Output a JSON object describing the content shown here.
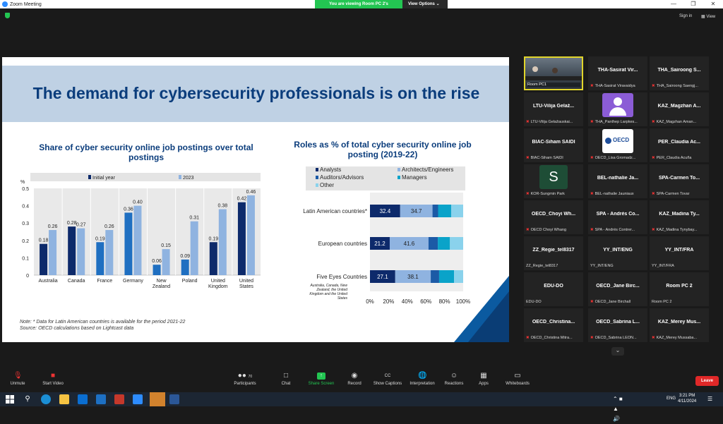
{
  "window": {
    "title": "Zoom Meeting"
  },
  "banner": {
    "viewing": "You are viewing Room PC 2's screen",
    "options": "View Options"
  },
  "topbar": {
    "sign_in": "Sign in",
    "view": "View"
  },
  "slide": {
    "title": "The demand for cybersecurity professionals is on the rise",
    "note": "Note: * Data for Latin American countries is available for the period 2021-22",
    "source": "Source: OECD calculations based on Lightcast data"
  },
  "chart_data": [
    {
      "type": "bar",
      "title": "Share of cyber security online job postings over total postings",
      "ylabel": "%",
      "ylim": [
        0,
        0.5
      ],
      "yticks": [
        "0",
        "0.1",
        "0.2",
        "0.3",
        "0.4",
        "0.5"
      ],
      "categories": [
        "Australia",
        "Canada",
        "France",
        "Germany",
        "New Zealand",
        "Poland",
        "United Kingdom",
        "United States"
      ],
      "category_lines": [
        [
          "Australia"
        ],
        [
          "Canada"
        ],
        [
          "France"
        ],
        [
          "Germany"
        ],
        [
          "New",
          "Zealand"
        ],
        [
          "Poland"
        ],
        [
          "United",
          "Kingdom"
        ],
        [
          "United",
          "States"
        ]
      ],
      "series": [
        {
          "name": "Initial year",
          "values": [
            0.18,
            0.28,
            0.19,
            0.36,
            0.06,
            0.09,
            0.19,
            0.42
          ],
          "labels": [
            "0.18",
            "0.28",
            "0.19",
            "0.36",
            "0.06",
            "0.09",
            "0.19",
            "0.42"
          ]
        },
        {
          "name": "2023",
          "values": [
            0.26,
            0.27,
            0.26,
            0.4,
            0.15,
            0.31,
            0.38,
            0.46
          ],
          "labels": [
            "0.26",
            "0.27",
            "0.26",
            "0.40",
            "0.15",
            "0.31",
            "0.38",
            "0.46"
          ]
        }
      ],
      "legend": "top",
      "grid": false
    },
    {
      "type": "bar",
      "orientation": "horizontal",
      "stacked": true,
      "title": "Roles as % of total cyber security online job posting (2019-22)",
      "categories": [
        "Latin American countries*",
        "European countries",
        "Five Eyes Countries"
      ],
      "category_note": "Australia, Canada, New Zealand, the United Kingdom and the United States",
      "xlim": [
        0,
        100
      ],
      "xticks": [
        "0%",
        "20%",
        "40%",
        "60%",
        "80%",
        "100%"
      ],
      "series": [
        {
          "name": "Analysts",
          "values": [
            32.4,
            21.2,
            27.1
          ],
          "labels": [
            "32.4",
            "21.2",
            "27.1"
          ]
        },
        {
          "name": "Architects/Engineers",
          "values": [
            34.7,
            41.6,
            38.1
          ],
          "labels": [
            "34.7",
            "41.6",
            "38.1"
          ]
        },
        {
          "name": "Auditors/Advisors",
          "values": [
            6,
            10,
            9
          ]
        },
        {
          "name": "Managers",
          "values": [
            14,
            13,
            16
          ]
        },
        {
          "name": "Other",
          "values": [
            12.9,
            14.2,
            9.8
          ]
        }
      ],
      "legend": "top"
    }
  ],
  "colors": {
    "dark_navy": "#0d2a6b",
    "blue": "#1f6fc1",
    "light_blue": "#8fb3e0",
    "teal": "#0aa3c9",
    "sky": "#8ad2ec",
    "title_navy": "#0b3d7c"
  },
  "participants": [
    {
      "name": "",
      "label": "Room PC1",
      "video": true
    },
    {
      "name": "THA-Sasirat Vir...",
      "label": "THA-Sasirat Viravaidya"
    },
    {
      "name": "THA_Sairoong S...",
      "label": "THA_Sairoong Saengj..."
    },
    {
      "name": "LTU-Vilija Gelaž...",
      "label": "LTU-Vilija Gelažauskai..."
    },
    {
      "name": "",
      "label": "THA_Panthep Larpkes...",
      "avatar": "person"
    },
    {
      "name": "KAZ_Magzhan A...",
      "label": "KAZ_Magzhan Aman..."
    },
    {
      "name": "BIAC-Siham SAIDI",
      "label": "BIAC-Siham SAIDI"
    },
    {
      "name": "",
      "label": "OECD_Lisa Gromadz...",
      "avatar": "oecd",
      "avatar_text": "OECD"
    },
    {
      "name": "PER_Claudia Ac...",
      "label": "PER_Claudia Acuña"
    },
    {
      "name": "",
      "label": "KOR-Sungmin Park",
      "avatar": "letter",
      "avatar_text": "S"
    },
    {
      "name": "BEL-nathalie Ja...",
      "label": "BEL-nathalie Jauniaux"
    },
    {
      "name": "SPA-Carmen To...",
      "label": "SPA-Carmen Tovar"
    },
    {
      "name": "OECD_Choyi Wh...",
      "label": "OECD Choyi Whang"
    },
    {
      "name": "SPA - Andrés Co...",
      "label": "SPA - Andrés Contrer..."
    },
    {
      "name": "KAZ_Madina Ty...",
      "label": "KAZ_Madina Tynybay..."
    },
    {
      "name": "ZZ_Regie_tel8317",
      "label": "ZZ_Regie_tel8317",
      "mic": false
    },
    {
      "name": "YY_INT/ENG",
      "label": "YY_INT/ENG",
      "mic": false
    },
    {
      "name": "YY_INT/FRA",
      "label": "YY_INT/FRA",
      "mic": false
    },
    {
      "name": "EDU-DO",
      "label": "EDU-DO",
      "mic": false
    },
    {
      "name": "OECD_Jane Birc...",
      "label": "OECD_Jane Birchall"
    },
    {
      "name": "Room PC 2",
      "label": "Room PC 2",
      "mic": false
    },
    {
      "name": "OECD_Christina...",
      "label": "OECD_Christina Mitra..."
    },
    {
      "name": "OECD_Sabrina L...",
      "label": "OECD_Sabrina LEON..."
    },
    {
      "name": "KAZ_Merey Mus...",
      "label": "KAZ_Merey Mussaba..."
    }
  ],
  "toolbar": {
    "unmute": "Unmute",
    "start_video": "Start Video",
    "participants": "Participants",
    "participants_count": "70",
    "chat": "Chat",
    "share_screen": "Share Screen",
    "record": "Record",
    "show_captions": "Show Captions",
    "interpretation": "Interpretation",
    "reactions": "Reactions",
    "apps": "Apps",
    "whiteboards": "Whiteboards",
    "leave": "Leave"
  },
  "taskbar": {
    "lang": "ENG",
    "time": "3:21 PM",
    "date": "4/11/2024"
  }
}
